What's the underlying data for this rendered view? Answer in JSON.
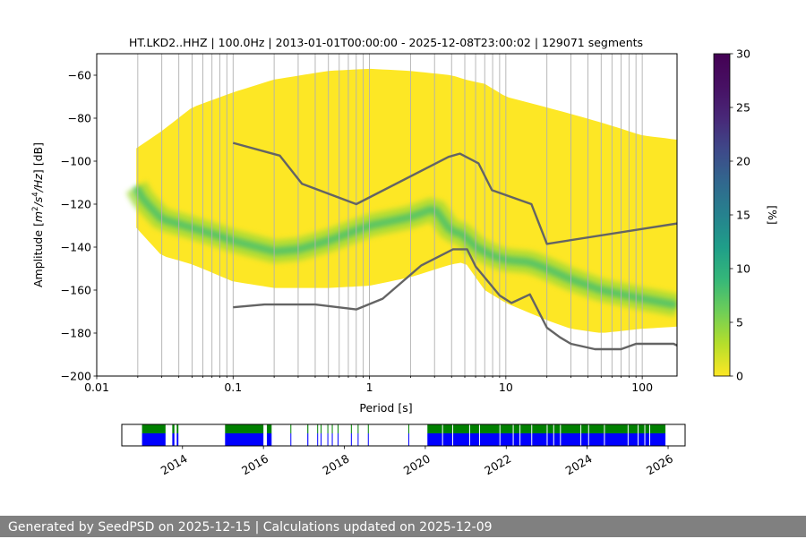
{
  "chart_data": [
    {
      "type": "heatmap",
      "title": "HT.LKD2..HHZ | 100.0Hz | 2013-01-01T00:00:00 - 2025-12-08T23:00:02 | 129071 segments",
      "xlabel": "Period [s]",
      "ylabel_parts": {
        "a": "Amplitude [",
        "m": "m",
        "e2": "2",
        "s": "/s",
        "e4": "4",
        "hz": "/Hz",
        "end": "] [dB]"
      },
      "x_scale": "log",
      "xlim": [
        0.01,
        180
      ],
      "ylim": [
        -200,
        -50
      ],
      "x_ticks": [
        {
          "v": 0.01,
          "label": "0.01"
        },
        {
          "v": 0.1,
          "label": "0.1"
        },
        {
          "v": 1,
          "label": "1"
        },
        {
          "v": 10,
          "label": "10"
        },
        {
          "v": 100,
          "label": "100"
        }
      ],
      "y_ticks": [
        {
          "v": -60,
          "label": "−60"
        },
        {
          "v": -80,
          "label": "−80"
        },
        {
          "v": -100,
          "label": "−100"
        },
        {
          "v": -120,
          "label": "−120"
        },
        {
          "v": -140,
          "label": "−140"
        },
        {
          "v": -160,
          "label": "−160"
        },
        {
          "v": -180,
          "label": "−180"
        },
        {
          "v": -200,
          "label": "−200"
        }
      ],
      "grid": "vertical",
      "colormap": "viridis",
      "colorbar": {
        "label": "[%]",
        "range": [
          0,
          30
        ],
        "ticks": [
          {
            "v": 0,
            "label": "0"
          },
          {
            "v": 5,
            "label": "5"
          },
          {
            "v": 10,
            "label": "10"
          },
          {
            "v": 15,
            "label": "15"
          },
          {
            "v": 20,
            "label": "20"
          },
          {
            "v": 25,
            "label": "25"
          },
          {
            "v": 30,
            "label": "30"
          }
        ]
      },
      "psd_extent": {
        "period_min": 0.0195,
        "period_max": 180,
        "x": [
          0.0195,
          0.03,
          0.05,
          0.1,
          0.2,
          0.5,
          1,
          2,
          4,
          5,
          7,
          10,
          20,
          30,
          50,
          100,
          180
        ],
        "upper": [
          -94,
          -86,
          -75,
          -68,
          -62,
          -58,
          -57,
          -58,
          -60,
          -62,
          -64,
          -70,
          -75,
          -78,
          -82,
          -88,
          -90
        ],
        "lower": [
          -131,
          -144,
          -148,
          -156,
          -159,
          -159,
          -158,
          -154,
          -148,
          -147,
          -160,
          -166,
          -174,
          -178,
          -180,
          -178,
          -177
        ]
      },
      "mode_curve": {
        "name": "mode",
        "x": [
          0.0195,
          0.022,
          0.03,
          0.05,
          0.08,
          0.1,
          0.2,
          0.3,
          0.5,
          1,
          2,
          3,
          4,
          4.5,
          5,
          6,
          8,
          10,
          15,
          20,
          30,
          50,
          100,
          180
        ],
        "y": [
          -112,
          -118,
          -127,
          -131,
          -135,
          -137,
          -142,
          -141,
          -137,
          -130,
          -126,
          -122,
          -133,
          -133,
          -135,
          -140,
          -144,
          -146,
          -147,
          -150,
          -155,
          -160,
          -164,
          -167
        ]
      },
      "series": [
        {
          "name": "",
          "color": "#646464",
          "x": [
            0.1,
            0.22,
            0.32,
            0.8,
            3.8,
            4.6,
            6.3,
            7.9,
            15.4,
            20,
            180
          ],
          "y": [
            -91.5,
            -97.4,
            -110.5,
            -120,
            -98,
            -96.5,
            -101,
            -113.5,
            -120,
            -138.5,
            -129
          ]
        },
        {
          "name": "",
          "color": "#646464",
          "x": [
            0.1,
            0.17,
            0.4,
            0.8,
            1.25,
            2.4,
            4.1,
            5.2,
            6,
            9,
            11,
            15,
            20,
            25,
            30,
            45,
            70,
            90,
            170,
            180
          ],
          "y": [
            -168,
            -166.7,
            -166.7,
            -169,
            -164,
            -148.5,
            -141,
            -141,
            -149,
            -162.5,
            -166,
            -162,
            -177.5,
            -182,
            -185,
            -187.5,
            -187.5,
            -185,
            -185,
            -185.8
          ]
        }
      ]
    },
    {
      "type": "timeline",
      "x_ticks": [
        "2014",
        "2016",
        "2018",
        "2020",
        "2022",
        "2024",
        "2026"
      ],
      "colors": {
        "top": "#008000",
        "bottom": "#0000ff"
      },
      "data_intervals": [
        [
          "2013-01-01",
          "2013-08-01"
        ],
        [
          "2013-10-01",
          "2013-10-20"
        ],
        [
          "2013-11-10",
          "2013-11-25"
        ],
        [
          "2015-01-20",
          "2016-01-01"
        ],
        [
          "2016-02-01",
          "2016-03-15"
        ],
        [
          "2016-09-01",
          "2016-09-05"
        ],
        [
          "2017-02-01",
          "2017-02-10"
        ],
        [
          "2017-05-01",
          "2017-05-06"
        ],
        [
          "2017-06-01",
          "2017-06-06"
        ],
        [
          "2017-08-01",
          "2017-08-06"
        ],
        [
          "2017-09-10",
          "2017-09-16"
        ],
        [
          "2017-11-01",
          "2017-11-05"
        ],
        [
          "2018-03-01",
          "2018-03-05"
        ],
        [
          "2018-05-01",
          "2018-05-05"
        ],
        [
          "2018-08-01",
          "2018-08-05"
        ],
        [
          "2019-08-01",
          "2019-08-05"
        ],
        [
          "2020-01-20",
          "2025-12-08"
        ]
      ],
      "gaps": [
        "2016-08-01",
        "2020-06-01",
        "2020-09-01",
        "2021-02-01",
        "2021-05-01",
        "2021-11-01",
        "2022-03-01",
        "2022-05-01",
        "2022-08-15",
        "2023-01-01",
        "2023-03-01",
        "2023-05-01",
        "2023-11-01",
        "2024-01-10",
        "2024-06-01",
        "2025-01-01",
        "2025-04-01",
        "2025-06-01",
        "2025-07-15"
      ]
    }
  ],
  "footer": "Generated by SeedPSD on 2025-12-15 | Calculations updated on 2025-12-09"
}
